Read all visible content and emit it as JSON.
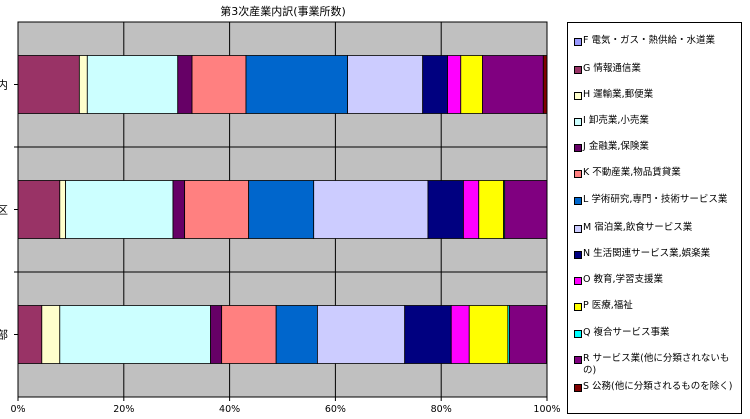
{
  "chart_data": {
    "type": "bar",
    "orientation": "horizontal",
    "stacked": "percent",
    "title": "第3次産業内訳(事業所数)",
    "categories": [
      "内",
      "区",
      "部"
    ],
    "xlim": [
      0,
      100
    ],
    "xticks": [
      "0%",
      "20%",
      "40%",
      "60%",
      "80%",
      "100%"
    ],
    "grid": true,
    "legend_position": "right",
    "plot_background": "#c0c0c0",
    "series": [
      {
        "name": "F 電気・ガス・熱供給・水道業",
        "color": "#9999ff",
        "values": [
          0.0,
          0.0,
          0.0
        ]
      },
      {
        "name": "G 情報通信業",
        "color": "#993366",
        "values": [
          11.6,
          7.9,
          4.5
        ]
      },
      {
        "name": "H 運輸業,郵便業",
        "color": "#ffffcc",
        "values": [
          1.5,
          1.1,
          3.4
        ]
      },
      {
        "name": "I 卸売業,小売業",
        "color": "#ccffff",
        "values": [
          17.1,
          20.3,
          28.5
        ]
      },
      {
        "name": "J 金融業,保険業",
        "color": "#660066",
        "values": [
          2.7,
          2.2,
          2.1
        ]
      },
      {
        "name": "K 不動産業,物品賃貸業",
        "color": "#ff8080",
        "values": [
          10.2,
          12.1,
          10.3
        ]
      },
      {
        "name": "L 学術研究,専門・技術サービス業",
        "color": "#0066cc",
        "values": [
          19.2,
          12.3,
          7.8
        ]
      },
      {
        "name": "M 宿泊業,飲食サービス業",
        "color": "#ccccff",
        "values": [
          14.2,
          21.6,
          16.5
        ]
      },
      {
        "name": "N 生活関連サービス業,娯楽業",
        "color": "#000080",
        "values": [
          4.7,
          6.7,
          8.8
        ]
      },
      {
        "name": "O 教育,学習支援業",
        "color": "#ff00ff",
        "values": [
          2.5,
          2.9,
          3.4
        ]
      },
      {
        "name": "P 医療,福祉",
        "color": "#ffff00",
        "values": [
          4.1,
          4.7,
          7.3
        ]
      },
      {
        "name": "Q 複合サービス事業",
        "color": "#00ffff",
        "values": [
          0.0,
          0.2,
          0.3
        ]
      },
      {
        "name": "R サービス業(他に分類されないもの)",
        "color": "#800080",
        "values": [
          11.5,
          8.0,
          7.0
        ]
      },
      {
        "name": "S 公務(他に分類されるものを除く)",
        "color": "#800000",
        "values": [
          0.7,
          0.0,
          0.1
        ]
      }
    ]
  }
}
